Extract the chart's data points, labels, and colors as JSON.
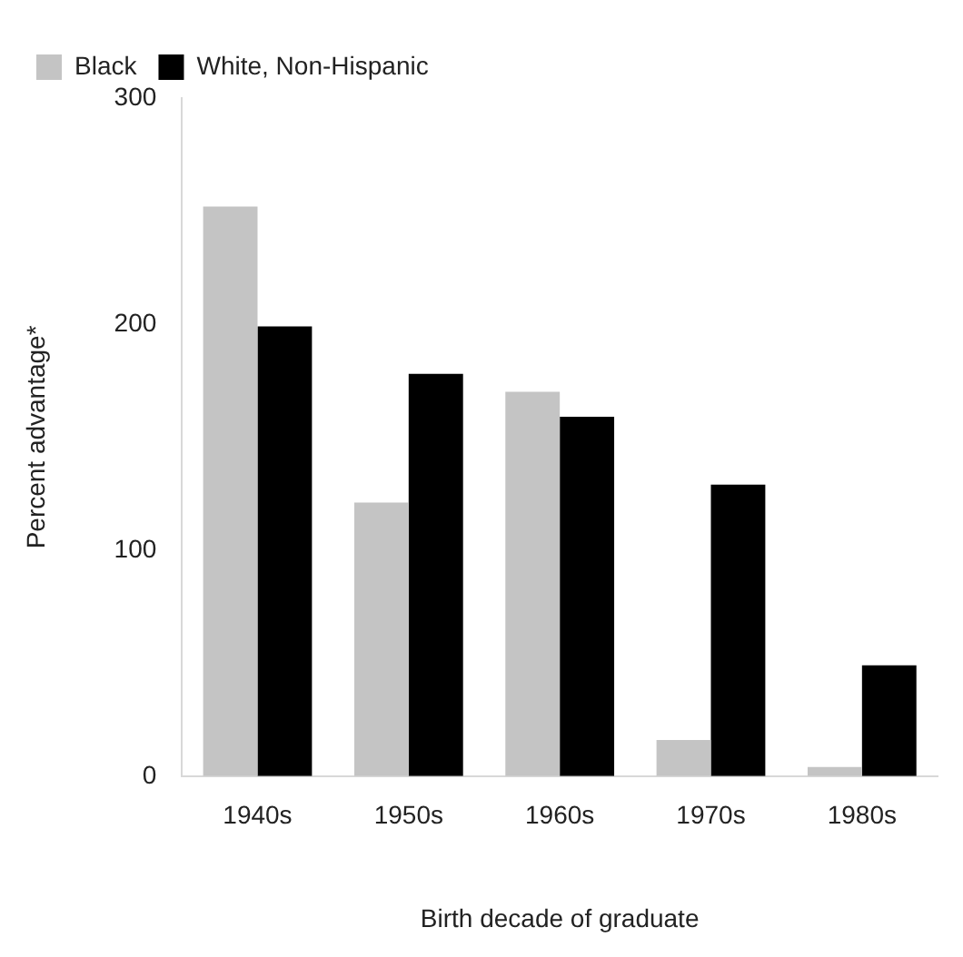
{
  "chart_data": {
    "type": "bar",
    "xlabel": "Birth decade of graduate",
    "ylabel": "Percent advantage*",
    "categories": [
      "1940s",
      "1950s",
      "1960s",
      "1970s",
      "1980s"
    ],
    "series": [
      {
        "name": "Black",
        "color": "#c4c4c4",
        "values": [
          252,
          121,
          170,
          16,
          4
        ]
      },
      {
        "name": "White, Non-Hispanic",
        "color": "#000000",
        "values": [
          199,
          178,
          159,
          129,
          49
        ]
      }
    ],
    "ylim": [
      0,
      300
    ],
    "yticks": [
      0,
      100,
      200,
      300
    ],
    "grid": false,
    "legend": "top left"
  }
}
